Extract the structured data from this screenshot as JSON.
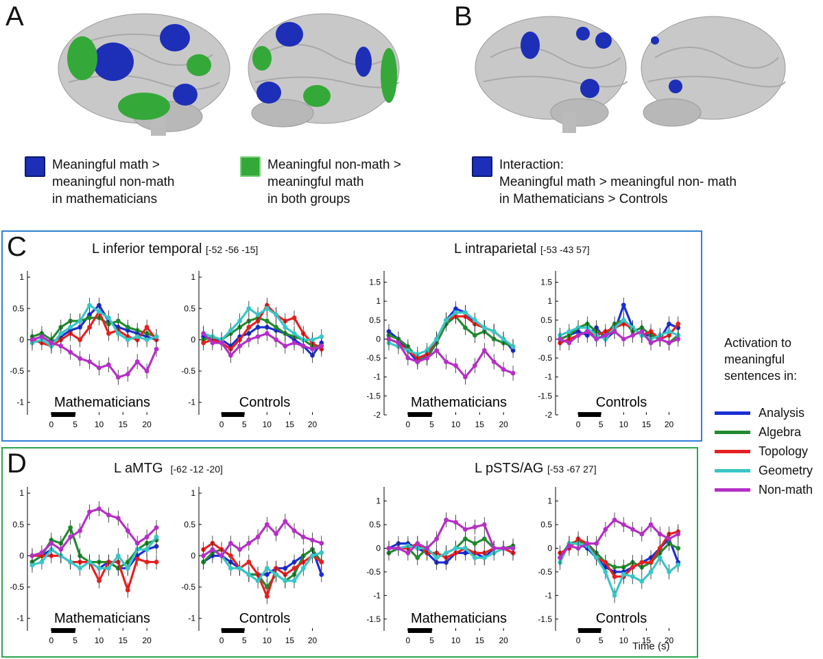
{
  "panels": {
    "A": "A",
    "B": "B",
    "C": "C",
    "D": "D"
  },
  "colors": {
    "math_blue": "#1d2fb6",
    "nonmath_green": "#35a83a",
    "panelC_border": "#2f7fd6",
    "panelD_border": "#2aa44a",
    "brain": "#bdbdbd"
  },
  "legend_top": {
    "blue": [
      "Meaningful math  >",
      "meaningful non-math",
      "in mathematicians"
    ],
    "green": [
      "Meaningful non-math  >",
      "meaningful math",
      "in both groups"
    ],
    "interaction": [
      "Interaction:",
      "Meaningful math  > meaningful non- math",
      "in Mathematicians  > Controls"
    ]
  },
  "series_key": {
    "heading": [
      "Activation to",
      "meaningful",
      "sentences in:"
    ],
    "items": [
      {
        "name": "Analysis",
        "color": "#1a2fd6"
      },
      {
        "name": "Algebra",
        "color": "#218a2f"
      },
      {
        "name": "Topology",
        "color": "#e62020"
      },
      {
        "name": "Geometry",
        "color": "#39c6c6"
      },
      {
        "name": "Non-math",
        "color": "#b52fc6"
      }
    ]
  },
  "region_titles": {
    "c_left": {
      "name": "L inferior temporal",
      "coords": "[-52 -56 -15]"
    },
    "c_right": {
      "name": "L intraparietal",
      "coords": "[-53 -43 57]"
    },
    "d_left": {
      "name": "L aMTG",
      "coords": "[-62 -12 -20]"
    },
    "d_right": {
      "name": "L pSTS/AG",
      "coords": "[-53 -67 27]"
    }
  },
  "x_axis_label": "Time (s)",
  "chart_data": [
    {
      "id": "c-it-math",
      "type": "line",
      "group": "Mathematicians",
      "xticks": [
        0,
        5,
        10,
        15,
        20
      ],
      "ylim": [
        -1.2,
        1.1
      ],
      "yticks": [
        1,
        0.5,
        0,
        -0.5,
        -1
      ],
      "ytick_labels": [
        "1",
        "0.5",
        "0",
        "-0.5",
        "-1"
      ],
      "x": [
        -4,
        -2,
        0,
        2,
        4,
        6,
        8,
        10,
        12,
        14,
        16,
        18,
        20,
        22
      ],
      "series": [
        {
          "name": "Analysis",
          "values": [
            0.0,
            0.05,
            -0.05,
            0.05,
            0.15,
            0.2,
            0.4,
            0.55,
            0.3,
            0.2,
            0.15,
            0.1,
            0.05,
            0.0
          ]
        },
        {
          "name": "Algebra",
          "values": [
            0.05,
            0.1,
            0.0,
            0.2,
            0.3,
            0.3,
            0.35,
            0.35,
            0.25,
            0.3,
            0.2,
            0.15,
            0.1,
            0.05
          ]
        },
        {
          "name": "Topology",
          "values": [
            0.0,
            -0.05,
            -0.1,
            0.0,
            0.1,
            0.0,
            0.2,
            0.45,
            0.1,
            0.15,
            0.05,
            0.0,
            0.2,
            0.0
          ]
        },
        {
          "name": "Geometry",
          "values": [
            -0.05,
            0.0,
            -0.1,
            0.1,
            0.2,
            0.3,
            0.55,
            0.45,
            0.35,
            0.1,
            0.0,
            0.05,
            0.0,
            0.05
          ]
        },
        {
          "name": "Non-math",
          "values": [
            0.0,
            0.05,
            -0.05,
            -0.1,
            -0.2,
            -0.3,
            -0.35,
            -0.45,
            -0.4,
            -0.6,
            -0.55,
            -0.35,
            -0.5,
            -0.15
          ]
        }
      ]
    },
    {
      "id": "c-it-ctrl",
      "type": "line",
      "group": "Controls",
      "xticks": [
        0,
        5,
        10,
        15,
        20
      ],
      "ylim": [
        -1.2,
        1.1
      ],
      "yticks": [
        1,
        0.5,
        0,
        -0.5,
        -1
      ],
      "ytick_labels": [
        "1",
        "0.5",
        "0",
        "-0.5",
        "-1"
      ],
      "x": [
        -4,
        -2,
        0,
        2,
        4,
        6,
        8,
        10,
        12,
        14,
        16,
        18,
        20,
        22
      ],
      "series": [
        {
          "name": "Analysis",
          "values": [
            0.05,
            0.0,
            0.0,
            -0.1,
            0.05,
            0.1,
            0.2,
            0.2,
            0.15,
            0.1,
            0.0,
            -0.1,
            -0.25,
            -0.05
          ]
        },
        {
          "name": "Algebra",
          "values": [
            0.0,
            0.05,
            0.0,
            0.1,
            0.2,
            0.3,
            0.35,
            0.3,
            0.2,
            0.1,
            0.05,
            0.0,
            -0.1,
            -0.1
          ]
        },
        {
          "name": "Topology",
          "values": [
            -0.05,
            0.0,
            -0.05,
            -0.15,
            0.0,
            0.2,
            0.3,
            0.55,
            0.4,
            0.3,
            0.35,
            0.1,
            -0.05,
            -0.15
          ]
        },
        {
          "name": "Geometry",
          "values": [
            0.1,
            0.05,
            0.0,
            0.15,
            0.3,
            0.5,
            0.4,
            0.5,
            0.4,
            0.2,
            0.1,
            0.0,
            0.0,
            0.05
          ]
        },
        {
          "name": "Non-math",
          "values": [
            0.1,
            -0.05,
            -0.05,
            -0.25,
            -0.1,
            0.0,
            0.05,
            0.1,
            0.0,
            -0.1,
            -0.05,
            -0.1,
            -0.15,
            -0.1
          ]
        }
      ]
    },
    {
      "id": "c-ip-math",
      "type": "line",
      "group": "Mathematicians",
      "xticks": [
        0,
        5,
        10,
        15,
        20
      ],
      "ylim": [
        -2,
        1.8
      ],
      "yticks": [
        1.5,
        1,
        0.5,
        0,
        -0.5,
        -1,
        -1.5,
        -2
      ],
      "ytick_labels": [
        "1.5",
        "1",
        "0.5",
        "0",
        "-0.5",
        "-1",
        "-1.5",
        "-2"
      ],
      "x": [
        -4,
        -2,
        0,
        2,
        4,
        6,
        8,
        10,
        12,
        14,
        16,
        18,
        20,
        22
      ],
      "series": [
        {
          "name": "Analysis",
          "values": [
            0.2,
            0.0,
            -0.3,
            -0.6,
            -0.4,
            0.0,
            0.5,
            0.8,
            0.7,
            0.4,
            0.3,
            0.2,
            0.0,
            -0.3
          ]
        },
        {
          "name": "Algebra",
          "values": [
            0.1,
            0.0,
            -0.2,
            -0.5,
            -0.5,
            -0.1,
            0.4,
            0.6,
            0.3,
            0.1,
            0.2,
            0.0,
            -0.1,
            -0.2
          ]
        },
        {
          "name": "Topology",
          "values": [
            0.0,
            -0.1,
            -0.3,
            -0.5,
            -0.4,
            0.0,
            0.5,
            0.6,
            0.6,
            0.4,
            0.3,
            0.2,
            0.0,
            -0.2
          ]
        },
        {
          "name": "Geometry",
          "values": [
            -0.1,
            -0.2,
            -0.3,
            -0.4,
            -0.3,
            0.0,
            0.5,
            0.7,
            0.7,
            0.5,
            0.3,
            0.2,
            0.0,
            -0.2
          ]
        },
        {
          "name": "Non-math",
          "values": [
            0.0,
            -0.1,
            -0.5,
            -0.6,
            -0.5,
            -0.3,
            -0.6,
            -0.7,
            -1.0,
            -0.7,
            -0.3,
            -0.6,
            -0.8,
            -0.9
          ]
        }
      ]
    },
    {
      "id": "c-ip-ctrl",
      "type": "line",
      "group": "Controls",
      "xticks": [
        0,
        5,
        10,
        15,
        20
      ],
      "ylim": [
        -2,
        1.8
      ],
      "yticks": [
        1.5,
        1,
        0.5,
        0,
        -0.5,
        -1,
        -1.5,
        -2
      ],
      "ytick_labels": [
        "1.5",
        "1",
        "0.5",
        "0",
        "-0.5",
        "-1",
        "-1.5",
        "-2"
      ],
      "x": [
        -4,
        -2,
        0,
        2,
        4,
        6,
        8,
        10,
        12,
        14,
        16,
        18,
        20,
        22
      ],
      "series": [
        {
          "name": "Analysis",
          "values": [
            0.0,
            0.1,
            0.2,
            0.1,
            0.3,
            0.0,
            0.2,
            0.9,
            0.3,
            0.1,
            0.1,
            0.0,
            0.4,
            0.3
          ]
        },
        {
          "name": "Algebra",
          "values": [
            0.0,
            0.1,
            0.3,
            0.4,
            0.2,
            0.1,
            0.4,
            0.5,
            0.2,
            0.3,
            0.1,
            0.0,
            -0.1,
            0.1
          ]
        },
        {
          "name": "Topology",
          "values": [
            -0.1,
            0.0,
            0.1,
            0.2,
            0.1,
            0.2,
            0.3,
            0.4,
            0.3,
            0.1,
            0.2,
            0.0,
            0.1,
            0.4
          ]
        },
        {
          "name": "Geometry",
          "values": [
            0.1,
            0.2,
            0.3,
            0.3,
            0.1,
            0.0,
            0.3,
            0.5,
            0.3,
            0.1,
            0.0,
            0.1,
            0.2,
            0.1
          ]
        },
        {
          "name": "Non-math",
          "values": [
            0.0,
            -0.1,
            0.1,
            0.2,
            0.0,
            0.1,
            0.2,
            0.0,
            0.1,
            0.2,
            -0.1,
            0.0,
            -0.1,
            0.0
          ]
        }
      ]
    },
    {
      "id": "d-amtg-math",
      "type": "line",
      "group": "Mathematicians",
      "xticks": [
        0,
        5,
        10,
        15,
        20
      ],
      "ylim": [
        -1.2,
        1.1
      ],
      "yticks": [
        1,
        0.5,
        0,
        -0.5,
        -1
      ],
      "ytick_labels": [
        "1",
        "0.5",
        "0",
        "-0.5",
        "-1"
      ],
      "x": [
        -4,
        -2,
        0,
        2,
        4,
        6,
        8,
        10,
        12,
        14,
        16,
        18,
        20,
        22
      ],
      "series": [
        {
          "name": "Analysis",
          "values": [
            -0.1,
            0.0,
            0.1,
            0.0,
            -0.1,
            -0.1,
            -0.1,
            -0.2,
            -0.1,
            -0.2,
            -0.2,
            0.0,
            0.1,
            0.15
          ]
        },
        {
          "name": "Algebra",
          "values": [
            -0.1,
            0.0,
            0.25,
            0.2,
            0.45,
            0.0,
            -0.1,
            -0.1,
            -0.1,
            -0.2,
            -0.1,
            0.1,
            0.2,
            0.25
          ]
        },
        {
          "name": "Topology",
          "values": [
            0.0,
            0.0,
            0.0,
            0.0,
            -0.1,
            -0.1,
            -0.1,
            -0.4,
            -0.1,
            -0.1,
            -0.55,
            -0.05,
            -0.1,
            -0.1
          ]
        },
        {
          "name": "Geometry",
          "values": [
            -0.15,
            -0.1,
            0.1,
            0.0,
            -0.1,
            -0.2,
            -0.1,
            -0.2,
            -0.2,
            0.0,
            -0.2,
            0.1,
            0.1,
            0.3
          ]
        },
        {
          "name": "Non-math",
          "values": [
            0.0,
            0.05,
            0.2,
            0.1,
            0.3,
            0.4,
            0.7,
            0.75,
            0.65,
            0.6,
            0.4,
            0.2,
            0.3,
            0.45
          ]
        }
      ]
    },
    {
      "id": "d-amtg-ctrl",
      "type": "line",
      "group": "Controls",
      "xticks": [
        0,
        5,
        10,
        15,
        20
      ],
      "ylim": [
        -1.2,
        1.1
      ],
      "yticks": [
        1,
        0.5,
        0,
        -0.5,
        -1
      ],
      "ytick_labels": [
        "1",
        "0.5",
        "0",
        "-0.5",
        "-1"
      ],
      "x": [
        -4,
        -2,
        0,
        2,
        4,
        6,
        8,
        10,
        12,
        14,
        16,
        18,
        20,
        22
      ],
      "series": [
        {
          "name": "Analysis",
          "values": [
            -0.1,
            0.0,
            0.0,
            -0.1,
            -0.2,
            -0.3,
            -0.3,
            -0.3,
            -0.2,
            -0.2,
            -0.1,
            0.0,
            0.1,
            -0.3
          ]
        },
        {
          "name": "Algebra",
          "values": [
            -0.1,
            0.05,
            0.1,
            0.0,
            -0.2,
            -0.3,
            -0.3,
            -0.5,
            -0.3,
            -0.4,
            -0.3,
            0.0,
            0.1,
            -0.1
          ]
        },
        {
          "name": "Topology",
          "values": [
            0.1,
            0.2,
            0.1,
            0.0,
            -0.2,
            -0.1,
            -0.3,
            -0.65,
            -0.2,
            -0.3,
            -0.2,
            -0.1,
            0.0,
            -0.1
          ]
        },
        {
          "name": "Geometry",
          "values": [
            0.0,
            0.1,
            0.0,
            -0.2,
            -0.2,
            -0.3,
            -0.4,
            -0.2,
            -0.3,
            -0.4,
            -0.4,
            -0.2,
            0.0,
            0.05
          ]
        },
        {
          "name": "Non-math",
          "values": [
            0.0,
            0.1,
            0.0,
            0.2,
            0.1,
            0.2,
            0.3,
            0.5,
            0.35,
            0.55,
            0.4,
            0.3,
            0.25,
            0.2
          ]
        }
      ]
    },
    {
      "id": "d-psts-math",
      "type": "line",
      "group": "Mathematicians",
      "xticks": [
        0,
        5,
        10,
        15,
        20
      ],
      "ylim": [
        -1.75,
        1.3
      ],
      "yticks": [
        1,
        0.5,
        0,
        -0.5,
        -1,
        -1.5
      ],
      "ytick_labels": [
        "1",
        "0.5",
        "0",
        "-0.5",
        "-1",
        "-1.5"
      ],
      "x": [
        -4,
        -2,
        0,
        2,
        4,
        6,
        8,
        10,
        12,
        14,
        16,
        18,
        20,
        22
      ],
      "series": [
        {
          "name": "Analysis",
          "values": [
            0.0,
            0.1,
            0.1,
            0.0,
            -0.1,
            -0.3,
            -0.3,
            -0.1,
            -0.1,
            -0.1,
            -0.2,
            0.0,
            0.0,
            -0.1
          ]
        },
        {
          "name": "Algebra",
          "values": [
            -0.1,
            0.0,
            0.0,
            -0.2,
            0.0,
            -0.2,
            -0.1,
            0.0,
            0.2,
            0.1,
            0.2,
            0.0,
            0.0,
            0.05
          ]
        },
        {
          "name": "Topology",
          "values": [
            0.0,
            0.0,
            0.0,
            0.1,
            -0.1,
            -0.1,
            -0.2,
            -0.1,
            0.0,
            -0.1,
            -0.1,
            0.0,
            0.0,
            -0.1
          ]
        },
        {
          "name": "Geometry",
          "values": [
            0.0,
            0.0,
            0.05,
            0.0,
            0.0,
            -0.2,
            -0.1,
            0.0,
            0.0,
            -0.2,
            -0.2,
            -0.1,
            0.0,
            0.0
          ]
        },
        {
          "name": "Non-math",
          "values": [
            0.0,
            0.0,
            -0.1,
            0.1,
            0.0,
            0.2,
            0.6,
            0.55,
            0.4,
            0.45,
            0.5,
            0.0,
            0.0,
            0.0
          ]
        }
      ]
    },
    {
      "id": "d-psts-ctrl",
      "type": "line",
      "group": "Controls",
      "xticks": [
        0,
        5,
        10,
        15,
        20
      ],
      "ylim": [
        -1.75,
        1.3
      ],
      "yticks": [
        1,
        0.5,
        0,
        -0.5,
        -1,
        -1.5
      ],
      "ytick_labels": [
        "1",
        "0.5",
        "0",
        "-0.5",
        "-1",
        "-1.5"
      ],
      "x": [
        -4,
        -2,
        0,
        2,
        4,
        6,
        8,
        10,
        12,
        14,
        16,
        18,
        20,
        22
      ],
      "series": [
        {
          "name": "Analysis",
          "values": [
            -0.2,
            0.1,
            0.1,
            0.0,
            -0.2,
            -0.4,
            -0.5,
            -0.5,
            -0.4,
            -0.3,
            -0.2,
            0.0,
            0.2,
            -0.3
          ]
        },
        {
          "name": "Algebra",
          "values": [
            -0.2,
            0.1,
            0.15,
            0.1,
            -0.1,
            -0.3,
            -0.4,
            -0.4,
            -0.3,
            -0.4,
            -0.3,
            -0.1,
            0.1,
            0.0
          ]
        },
        {
          "name": "Topology",
          "values": [
            -0.1,
            0.0,
            0.2,
            0.1,
            -0.2,
            -0.3,
            -0.6,
            -0.6,
            -0.4,
            -0.3,
            -0.3,
            0.0,
            0.3,
            0.35
          ]
        },
        {
          "name": "Geometry",
          "values": [
            -0.3,
            0.1,
            0.1,
            0.05,
            -0.2,
            -0.5,
            -1.0,
            -0.55,
            -0.6,
            -0.7,
            -0.5,
            -0.2,
            -0.5,
            -0.35
          ]
        },
        {
          "name": "Non-math",
          "values": [
            -0.2,
            0.05,
            0.0,
            0.1,
            0.1,
            0.4,
            0.6,
            0.5,
            0.4,
            0.3,
            0.5,
            0.3,
            0.2,
            0.3
          ]
        }
      ]
    }
  ]
}
